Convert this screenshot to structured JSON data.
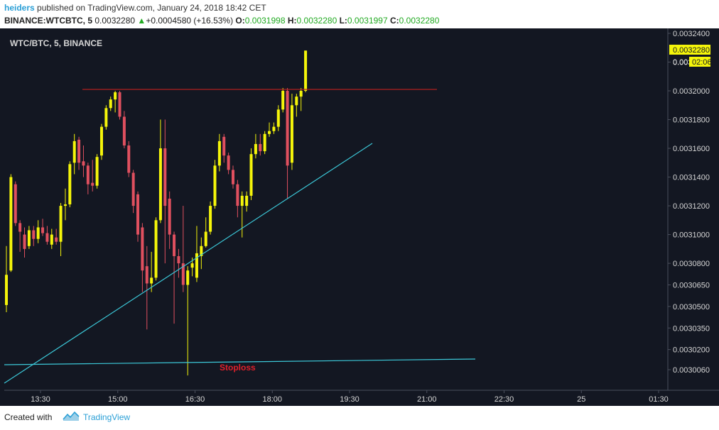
{
  "header": {
    "author": "heiders",
    "published_text": "published on TradingView.com, January 24, 2018 18:42 CET",
    "symbol": "BINANCE:WTCBTC, 5",
    "last": "0.0032280",
    "change_arrow": "▲",
    "change": "+0.0004580 (+16.53%)",
    "o_label": "O:",
    "o_value": "0.0031998",
    "h_label": "H:",
    "h_value": "0.0032280",
    "l_label": "L:",
    "l_value": "0.0031997",
    "c_label": "C:",
    "c_value": "0.0032280"
  },
  "footer": {
    "created_with": "Created with",
    "brand": "TradingView"
  },
  "chart_data": {
    "type": "candlestick",
    "title": "WTC/BTC, 5, BINANCE",
    "price_ticks": [
      "0.0032400",
      "0.0032200",
      "0.0032000",
      "0.0031800",
      "0.0031600",
      "0.0031400",
      "0.0031200",
      "0.0031000",
      "0.0030800",
      "0.0030650",
      "0.0030500",
      "0.0030350",
      "0.0030200",
      "0.0030060"
    ],
    "time_ticks": [
      "13:30",
      "15:00",
      "16:30",
      "18:00",
      "19:30",
      "21:00",
      "22:30",
      "25",
      "01:30"
    ],
    "last_price_label": "0.0032280",
    "countdown_label": "02:06",
    "countdown_price_prefix": "0.00",
    "annotation": "Stoploss",
    "colors": {
      "background": "#131722",
      "up": "#f5f50a",
      "down": "#e0505f",
      "trendline": "#3cc8d8",
      "resistance": "#b02020",
      "stoploss_text": "#e0202a"
    },
    "candles": [
      {
        "o": 0.003051,
        "h": 0.003092,
        "l": 0.003046,
        "c": 0.003072
      },
      {
        "o": 0.003075,
        "h": 0.003142,
        "l": 0.003074,
        "c": 0.00314
      },
      {
        "o": 0.003135,
        "h": 0.003137,
        "l": 0.003106,
        "c": 0.003108
      },
      {
        "o": 0.003108,
        "h": 0.00311,
        "l": 0.003088,
        "c": 0.003102
      },
      {
        "o": 0.0031,
        "h": 0.003105,
        "l": 0.003084,
        "c": 0.00309
      },
      {
        "o": 0.003092,
        "h": 0.003106,
        "l": 0.00309,
        "c": 0.003103
      },
      {
        "o": 0.003103,
        "h": 0.003106,
        "l": 0.003092,
        "c": 0.003097
      },
      {
        "o": 0.003097,
        "h": 0.00311,
        "l": 0.003094,
        "c": 0.003105
      },
      {
        "o": 0.003105,
        "h": 0.003111,
        "l": 0.003099,
        "c": 0.003101
      },
      {
        "o": 0.003101,
        "h": 0.003106,
        "l": 0.003093,
        "c": 0.003095
      },
      {
        "o": 0.003093,
        "h": 0.003104,
        "l": 0.00309,
        "c": 0.0031
      },
      {
        "o": 0.003098,
        "h": 0.003104,
        "l": 0.003093,
        "c": 0.003095
      },
      {
        "o": 0.003095,
        "h": 0.003122,
        "l": 0.003085,
        "c": 0.00312
      },
      {
        "o": 0.00312,
        "h": 0.003132,
        "l": 0.00311,
        "c": 0.003121
      },
      {
        "o": 0.003121,
        "h": 0.003151,
        "l": 0.003119,
        "c": 0.003149
      },
      {
        "o": 0.00315,
        "h": 0.00317,
        "l": 0.003142,
        "c": 0.003165
      },
      {
        "o": 0.003166,
        "h": 0.003168,
        "l": 0.003145,
        "c": 0.00315
      },
      {
        "o": 0.003151,
        "h": 0.003162,
        "l": 0.00314,
        "c": 0.003148
      },
      {
        "o": 0.003148,
        "h": 0.00315,
        "l": 0.003128,
        "c": 0.003135
      },
      {
        "o": 0.003136,
        "h": 0.003152,
        "l": 0.00313,
        "c": 0.003134
      },
      {
        "o": 0.003134,
        "h": 0.003156,
        "l": 0.003132,
        "c": 0.003154
      },
      {
        "o": 0.003155,
        "h": 0.003177,
        "l": 0.003152,
        "c": 0.003175
      },
      {
        "o": 0.003175,
        "h": 0.00319,
        "l": 0.003173,
        "c": 0.003188
      },
      {
        "o": 0.003188,
        "h": 0.003196,
        "l": 0.003186,
        "c": 0.003194
      },
      {
        "o": 0.003194,
        "h": 0.0032,
        "l": 0.003185,
        "c": 0.003199
      },
      {
        "o": 0.003199,
        "h": 0.0032,
        "l": 0.00318,
        "c": 0.003182
      },
      {
        "o": 0.003182,
        "h": 0.003186,
        "l": 0.00316,
        "c": 0.003162
      },
      {
        "o": 0.003162,
        "h": 0.003165,
        "l": 0.00314,
        "c": 0.003143
      },
      {
        "o": 0.003143,
        "h": 0.003145,
        "l": 0.003115,
        "c": 0.00312
      },
      {
        "o": 0.003128,
        "h": 0.00313,
        "l": 0.003095,
        "c": 0.0031
      },
      {
        "o": 0.003105,
        "h": 0.003108,
        "l": 0.00306,
        "c": 0.003075
      },
      {
        "o": 0.003078,
        "h": 0.003092,
        "l": 0.003034,
        "c": 0.003066
      },
      {
        "o": 0.003066,
        "h": 0.003088,
        "l": 0.00306,
        "c": 0.00307
      },
      {
        "o": 0.00307,
        "h": 0.003112,
        "l": 0.003068,
        "c": 0.00311
      },
      {
        "o": 0.00311,
        "h": 0.00318,
        "l": 0.003108,
        "c": 0.00316
      },
      {
        "o": 0.00316,
        "h": 0.00318,
        "l": 0.00308,
        "c": 0.00312
      },
      {
        "o": 0.003125,
        "h": 0.00313,
        "l": 0.00309,
        "c": 0.0031
      },
      {
        "o": 0.0031,
        "h": 0.003102,
        "l": 0.003038,
        "c": 0.003085
      },
      {
        "o": 0.003085,
        "h": 0.00309,
        "l": 0.00307,
        "c": 0.00308
      },
      {
        "o": 0.00308,
        "h": 0.00312,
        "l": 0.00306,
        "c": 0.003065
      },
      {
        "o": 0.003065,
        "h": 0.003078,
        "l": 0.003002,
        "c": 0.003075
      },
      {
        "o": 0.003077,
        "h": 0.003084,
        "l": 0.003071,
        "c": 0.00308
      },
      {
        "o": 0.00307,
        "h": 0.003106,
        "l": 0.003067,
        "c": 0.003087
      },
      {
        "o": 0.003085,
        "h": 0.003098,
        "l": 0.003076,
        "c": 0.003092
      },
      {
        "o": 0.003092,
        "h": 0.003112,
        "l": 0.003091,
        "c": 0.003102
      },
      {
        "o": 0.003102,
        "h": 0.003123,
        "l": 0.0031,
        "c": 0.00312
      },
      {
        "o": 0.00312,
        "h": 0.003152,
        "l": 0.003118,
        "c": 0.003148
      },
      {
        "o": 0.003148,
        "h": 0.00317,
        "l": 0.003144,
        "c": 0.003165
      },
      {
        "o": 0.003168,
        "h": 0.00317,
        "l": 0.00315,
        "c": 0.003155
      },
      {
        "o": 0.003155,
        "h": 0.003157,
        "l": 0.003142,
        "c": 0.003145
      },
      {
        "o": 0.003145,
        "h": 0.003148,
        "l": 0.003132,
        "c": 0.003135
      },
      {
        "o": 0.003135,
        "h": 0.003138,
        "l": 0.003112,
        "c": 0.00312
      },
      {
        "o": 0.00312,
        "h": 0.00313,
        "l": 0.003098,
        "c": 0.003127
      },
      {
        "o": 0.00312,
        "h": 0.00313,
        "l": 0.003116,
        "c": 0.003127
      },
      {
        "o": 0.003127,
        "h": 0.00316,
        "l": 0.003124,
        "c": 0.003156
      },
      {
        "o": 0.003156,
        "h": 0.00317,
        "l": 0.003153,
        "c": 0.003163
      },
      {
        "o": 0.003163,
        "h": 0.00317,
        "l": 0.003155,
        "c": 0.003158
      },
      {
        "o": 0.003158,
        "h": 0.003172,
        "l": 0.003156,
        "c": 0.00317
      },
      {
        "o": 0.00317,
        "h": 0.003178,
        "l": 0.003168,
        "c": 0.003172
      },
      {
        "o": 0.003172,
        "h": 0.003178,
        "l": 0.00317,
        "c": 0.003175
      },
      {
        "o": 0.003175,
        "h": 0.00319,
        "l": 0.003172,
        "c": 0.003187
      },
      {
        "o": 0.003187,
        "h": 0.003202,
        "l": 0.003185,
        "c": 0.0032
      },
      {
        "o": 0.0032,
        "h": 0.003202,
        "l": 0.003125,
        "c": 0.003148
      },
      {
        "o": 0.00315,
        "h": 0.003198,
        "l": 0.003145,
        "c": 0.00319
      },
      {
        "o": 0.00319,
        "h": 0.003198,
        "l": 0.003182,
        "c": 0.003196
      },
      {
        "o": 0.003196,
        "h": 0.003202,
        "l": 0.003186,
        "c": 0.0032
      },
      {
        "o": 0.0032,
        "h": 0.003228,
        "l": 0.003199,
        "c": 0.003228
      }
    ]
  }
}
